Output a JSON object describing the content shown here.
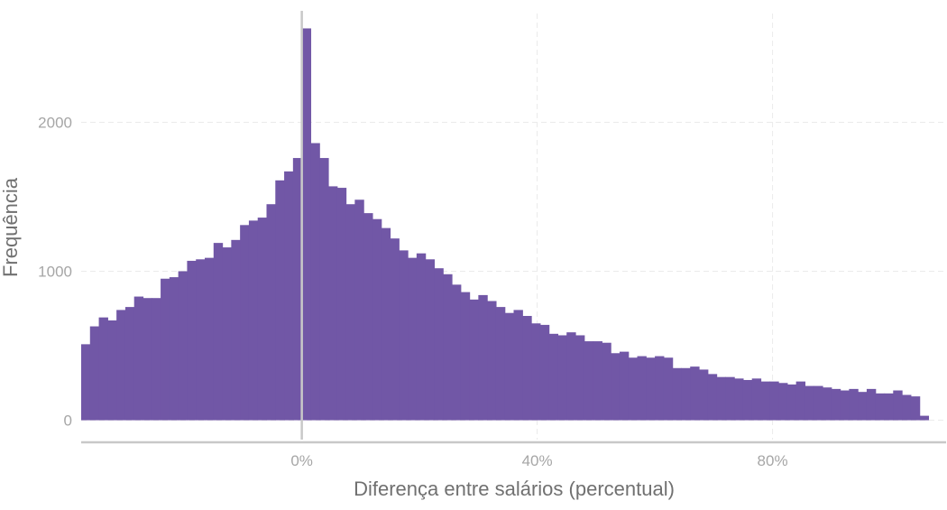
{
  "chart_data": {
    "type": "bar",
    "subtype": "histogram",
    "xlabel": "Diferença entre salários (percentual)",
    "ylabel": "Frequência",
    "x_ticks": [
      {
        "value": 0,
        "label": "0%"
      },
      {
        "value": 40,
        "label": "40%"
      },
      {
        "value": 80,
        "label": "80%"
      }
    ],
    "y_ticks": [
      {
        "value": 0,
        "label": "0"
      },
      {
        "value": 1000,
        "label": "1000"
      },
      {
        "value": 2000,
        "label": "2000"
      }
    ],
    "xlim": [
      -37.5,
      109.5
    ],
    "ylim": [
      -130,
      2760
    ],
    "bin_width": 1.5,
    "bin_start": -37.5,
    "counts": [
      510,
      630,
      690,
      670,
      740,
      760,
      830,
      820,
      820,
      950,
      960,
      1000,
      1070,
      1080,
      1090,
      1190,
      1160,
      1210,
      1310,
      1340,
      1360,
      1450,
      1610,
      1670,
      1760,
      2630,
      1860,
      1760,
      1570,
      1560,
      1450,
      1480,
      1390,
      1350,
      1290,
      1220,
      1140,
      1090,
      1120,
      1080,
      1020,
      980,
      910,
      860,
      810,
      840,
      800,
      760,
      720,
      740,
      700,
      650,
      640,
      580,
      570,
      590,
      570,
      530,
      530,
      520,
      450,
      460,
      420,
      430,
      420,
      430,
      420,
      350,
      350,
      360,
      340,
      310,
      290,
      290,
      280,
      270,
      280,
      260,
      260,
      250,
      240,
      260,
      230,
      230,
      220,
      210,
      200,
      210,
      190,
      210,
      180,
      180,
      200,
      170,
      160,
      30
    ],
    "bar_color": "#7157a6",
    "grid": true,
    "legend": "none"
  }
}
